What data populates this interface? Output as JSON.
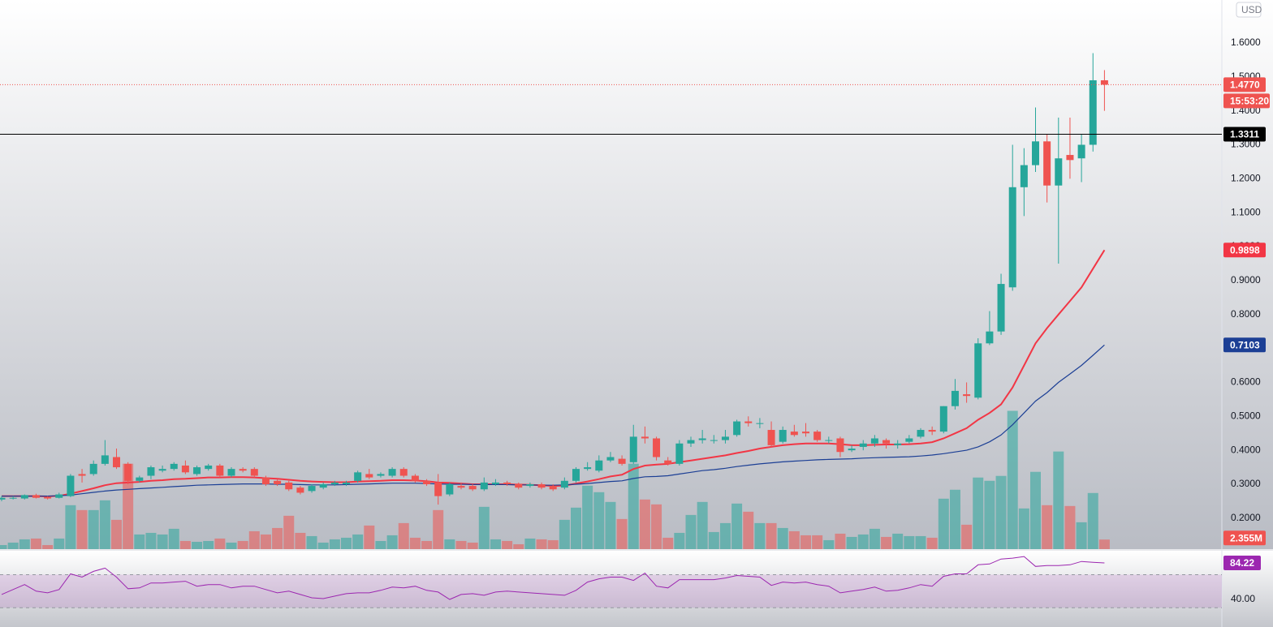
{
  "chart_data": {
    "type": "candlestick",
    "currency": "USD",
    "up_color": "#26a69a",
    "down_color": "#ef5350",
    "ylim": [
      0.1088,
      1.7265
    ],
    "yticks": [
      {
        "value": 0.2,
        "label": "0.2000"
      },
      {
        "value": 0.3,
        "label": "0.3000"
      },
      {
        "value": 0.4,
        "label": "0.4000"
      },
      {
        "value": 0.5,
        "label": "0.5000"
      },
      {
        "value": 0.6,
        "label": "0.6000"
      },
      {
        "value": 0.7,
        "label": "0.7000"
      },
      {
        "value": 0.8,
        "label": "0.8000"
      },
      {
        "value": 0.9,
        "label": "0.9000"
      },
      {
        "value": 1.0,
        "label": "1.0000"
      },
      {
        "value": 1.1,
        "label": "1.1000"
      },
      {
        "value": 1.2,
        "label": "1.2000"
      },
      {
        "value": 1.3,
        "label": "1.3000"
      },
      {
        "value": 1.4,
        "label": "1.4000"
      },
      {
        "value": 1.5,
        "label": "1.5000"
      },
      {
        "value": 1.6,
        "label": "1.6000"
      }
    ],
    "candles": [
      [
        0.255,
        0.265,
        0.25,
        0.26
      ],
      [
        0.26,
        0.265,
        0.255,
        0.26
      ],
      [
        0.258,
        0.27,
        0.255,
        0.268
      ],
      [
        0.268,
        0.272,
        0.258,
        0.26
      ],
      [
        0.262,
        0.265,
        0.255,
        0.258
      ],
      [
        0.26,
        0.275,
        0.258,
        0.27
      ],
      [
        0.265,
        0.33,
        0.262,
        0.325
      ],
      [
        0.33,
        0.345,
        0.305,
        0.325
      ],
      [
        0.33,
        0.37,
        0.325,
        0.36
      ],
      [
        0.36,
        0.43,
        0.355,
        0.385
      ],
      [
        0.38,
        0.405,
        0.345,
        0.35
      ],
      [
        0.36,
        0.365,
        0.3,
        0.31
      ],
      [
        0.31,
        0.325,
        0.305,
        0.32
      ],
      [
        0.325,
        0.355,
        0.315,
        0.35
      ],
      [
        0.34,
        0.355,
        0.335,
        0.345
      ],
      [
        0.345,
        0.365,
        0.34,
        0.36
      ],
      [
        0.355,
        0.37,
        0.33,
        0.335
      ],
      [
        0.33,
        0.355,
        0.325,
        0.35
      ],
      [
        0.345,
        0.36,
        0.34,
        0.355
      ],
      [
        0.355,
        0.36,
        0.32,
        0.325
      ],
      [
        0.325,
        0.35,
        0.32,
        0.345
      ],
      [
        0.345,
        0.35,
        0.335,
        0.34
      ],
      [
        0.345,
        0.35,
        0.32,
        0.325
      ],
      [
        0.32,
        0.325,
        0.295,
        0.3
      ],
      [
        0.31,
        0.315,
        0.295,
        0.3
      ],
      [
        0.305,
        0.31,
        0.28,
        0.285
      ],
      [
        0.29,
        0.295,
        0.27,
        0.275
      ],
      [
        0.28,
        0.3,
        0.275,
        0.295
      ],
      [
        0.29,
        0.305,
        0.285,
        0.3
      ],
      [
        0.3,
        0.31,
        0.295,
        0.305
      ],
      [
        0.3,
        0.31,
        0.295,
        0.305
      ],
      [
        0.31,
        0.34,
        0.305,
        0.335
      ],
      [
        0.33,
        0.345,
        0.315,
        0.32
      ],
      [
        0.325,
        0.335,
        0.32,
        0.33
      ],
      [
        0.325,
        0.35,
        0.32,
        0.345
      ],
      [
        0.345,
        0.35,
        0.32,
        0.325
      ],
      [
        0.325,
        0.33,
        0.305,
        0.31
      ],
      [
        0.31,
        0.315,
        0.295,
        0.3
      ],
      [
        0.305,
        0.33,
        0.24,
        0.265
      ],
      [
        0.27,
        0.305,
        0.265,
        0.3
      ],
      [
        0.295,
        0.305,
        0.285,
        0.29
      ],
      [
        0.295,
        0.3,
        0.28,
        0.285
      ],
      [
        0.285,
        0.32,
        0.28,
        0.305
      ],
      [
        0.3,
        0.315,
        0.295,
        0.305
      ],
      [
        0.305,
        0.31,
        0.295,
        0.3
      ],
      [
        0.3,
        0.305,
        0.285,
        0.29
      ],
      [
        0.295,
        0.305,
        0.29,
        0.3
      ],
      [
        0.3,
        0.305,
        0.285,
        0.29
      ],
      [
        0.295,
        0.3,
        0.28,
        0.285
      ],
      [
        0.29,
        0.32,
        0.285,
        0.31
      ],
      [
        0.31,
        0.35,
        0.305,
        0.345
      ],
      [
        0.345,
        0.365,
        0.34,
        0.35
      ],
      [
        0.34,
        0.385,
        0.335,
        0.37
      ],
      [
        0.37,
        0.395,
        0.365,
        0.38
      ],
      [
        0.375,
        0.385,
        0.355,
        0.36
      ],
      [
        0.365,
        0.475,
        0.36,
        0.44
      ],
      [
        0.44,
        0.47,
        0.42,
        0.435
      ],
      [
        0.435,
        0.44,
        0.37,
        0.38
      ],
      [
        0.37,
        0.38,
        0.355,
        0.36
      ],
      [
        0.36,
        0.43,
        0.355,
        0.42
      ],
      [
        0.42,
        0.44,
        0.41,
        0.43
      ],
      [
        0.43,
        0.46,
        0.42,
        0.435
      ],
      [
        0.43,
        0.445,
        0.42,
        0.43
      ],
      [
        0.43,
        0.46,
        0.42,
        0.44
      ],
      [
        0.445,
        0.49,
        0.44,
        0.485
      ],
      [
        0.485,
        0.5,
        0.47,
        0.48
      ],
      [
        0.48,
        0.495,
        0.465,
        0.48
      ],
      [
        0.46,
        0.485,
        0.41,
        0.415
      ],
      [
        0.425,
        0.47,
        0.42,
        0.46
      ],
      [
        0.455,
        0.475,
        0.44,
        0.445
      ],
      [
        0.455,
        0.48,
        0.44,
        0.45
      ],
      [
        0.455,
        0.46,
        0.425,
        0.43
      ],
      [
        0.43,
        0.44,
        0.42,
        0.43
      ],
      [
        0.435,
        0.44,
        0.38,
        0.395
      ],
      [
        0.4,
        0.415,
        0.395,
        0.405
      ],
      [
        0.41,
        0.43,
        0.4,
        0.42
      ],
      [
        0.42,
        0.445,
        0.41,
        0.435
      ],
      [
        0.43,
        0.435,
        0.405,
        0.42
      ],
      [
        0.415,
        0.43,
        0.405,
        0.42
      ],
      [
        0.425,
        0.445,
        0.42,
        0.435
      ],
      [
        0.44,
        0.465,
        0.435,
        0.46
      ],
      [
        0.46,
        0.47,
        0.445,
        0.455
      ],
      [
        0.455,
        0.53,
        0.45,
        0.53
      ],
      [
        0.53,
        0.61,
        0.52,
        0.575
      ],
      [
        0.565,
        0.6,
        0.54,
        0.56
      ],
      [
        0.555,
        0.73,
        0.55,
        0.715
      ],
      [
        0.715,
        0.81,
        0.71,
        0.75
      ],
      [
        0.75,
        0.92,
        0.74,
        0.89
      ],
      [
        0.88,
        1.3,
        0.87,
        1.175
      ],
      [
        1.175,
        1.29,
        1.09,
        1.24
      ],
      [
        1.24,
        1.41,
        1.22,
        1.31
      ],
      [
        1.31,
        1.33,
        1.13,
        1.18
      ],
      [
        1.18,
        1.38,
        0.95,
        1.26
      ],
      [
        1.27,
        1.38,
        1.2,
        1.255
      ],
      [
        1.26,
        1.33,
        1.19,
        1.3
      ],
      [
        1.3,
        1.57,
        1.28,
        1.49
      ],
      [
        1.49,
        1.52,
        1.4,
        1.477
      ]
    ],
    "volume": {
      "ylim": [
        0,
        135
      ],
      "values": [
        1,
        1.6,
        2.4,
        2.6,
        1,
        2.6,
        10.8,
        9.6,
        9.6,
        12,
        7.2,
        21,
        3.6,
        4,
        3.6,
        5,
        2,
        1.8,
        2,
        2.6,
        1.6,
        2,
        4.4,
        3.6,
        5.2,
        8.2,
        4,
        3.2,
        1.6,
        2.4,
        2.8,
        3.6,
        5.8,
        2,
        3.4,
        6.4,
        2.8,
        2,
        9.6,
        2.4,
        2,
        1.6,
        10.4,
        2.4,
        2,
        1.2,
        2.6,
        2.4,
        2.2,
        7.2,
        10.2,
        15.6,
        14,
        11.6,
        7.4,
        21,
        12.2,
        11,
        2.8,
        4,
        8.4,
        11.6,
        4.2,
        6.4,
        11.2,
        9.2,
        6.4,
        6.4,
        5.2,
        4.4,
        3.4,
        3.4,
        2.2,
        3.8,
        3,
        3.6,
        5,
        3,
        3.8,
        3.2,
        3.2,
        2.8,
        12.4,
        14.6,
        6,
        17.6,
        16.8,
        18,
        34,
        10,
        19,
        10.8,
        24,
        10.6,
        6.6,
        13.8,
        2.355
      ],
      "value_labels": [
        null,
        null,
        null,
        null,
        null,
        null,
        null,
        null,
        null,
        null,
        null,
        null,
        null,
        null,
        null,
        null,
        null,
        null,
        null,
        null,
        null,
        null,
        null,
        null,
        null,
        null,
        null,
        null,
        null,
        null,
        null,
        null,
        null,
        null,
        null,
        null,
        null,
        null,
        null,
        null,
        null,
        null,
        null,
        null,
        null,
        null,
        null,
        null,
        null,
        null,
        null,
        null,
        null,
        null,
        null,
        null,
        null,
        null,
        null,
        null,
        null,
        null,
        null,
        null,
        null,
        null,
        null,
        null,
        null,
        null,
        null,
        null,
        null,
        null,
        null,
        null,
        null,
        null,
        null,
        null,
        null,
        null,
        null,
        null,
        null,
        null,
        null,
        null,
        null,
        null,
        null,
        null,
        null,
        null,
        null,
        null,
        "2.355M"
      ]
    },
    "lines": [
      {
        "color": "#f23645",
        "values": [
          0.265,
          0.265,
          0.265,
          0.265,
          0.264,
          0.266,
          0.272,
          0.28,
          0.288,
          0.297,
          0.303,
          0.305,
          0.307,
          0.31,
          0.312,
          0.315,
          0.316,
          0.318,
          0.32,
          0.32,
          0.321,
          0.321,
          0.32,
          0.318,
          0.316,
          0.313,
          0.31,
          0.308,
          0.307,
          0.306,
          0.306,
          0.308,
          0.309,
          0.31,
          0.312,
          0.312,
          0.311,
          0.309,
          0.305,
          0.304,
          0.302,
          0.3,
          0.3,
          0.3,
          0.3,
          0.299,
          0.298,
          0.297,
          0.295,
          0.296,
          0.302,
          0.308,
          0.315,
          0.323,
          0.328,
          0.345,
          0.355,
          0.358,
          0.36,
          0.365,
          0.37,
          0.375,
          0.38,
          0.385,
          0.392,
          0.398,
          0.405,
          0.41,
          0.415,
          0.418,
          0.42,
          0.42,
          0.42,
          0.418,
          0.415,
          0.415,
          0.416,
          0.417,
          0.417,
          0.418,
          0.42,
          0.424,
          0.435,
          0.45,
          0.465,
          0.49,
          0.51,
          0.535,
          0.585,
          0.65,
          0.715,
          0.76,
          0.8,
          0.84,
          0.88,
          0.935,
          0.9898
        ]
      },
      {
        "color": "#1c3f95",
        "values": [
          0.265,
          0.265,
          0.265,
          0.265,
          0.265,
          0.266,
          0.268,
          0.272,
          0.276,
          0.28,
          0.283,
          0.285,
          0.287,
          0.289,
          0.291,
          0.293,
          0.295,
          0.297,
          0.298,
          0.299,
          0.3,
          0.301,
          0.301,
          0.301,
          0.3,
          0.3,
          0.299,
          0.298,
          0.298,
          0.298,
          0.299,
          0.3,
          0.301,
          0.302,
          0.303,
          0.303,
          0.303,
          0.302,
          0.301,
          0.3,
          0.3,
          0.299,
          0.299,
          0.299,
          0.299,
          0.298,
          0.298,
          0.297,
          0.297,
          0.298,
          0.3,
          0.302,
          0.305,
          0.308,
          0.31,
          0.317,
          0.322,
          0.323,
          0.325,
          0.33,
          0.335,
          0.34,
          0.343,
          0.347,
          0.352,
          0.356,
          0.36,
          0.363,
          0.366,
          0.368,
          0.37,
          0.372,
          0.373,
          0.374,
          0.375,
          0.377,
          0.378,
          0.379,
          0.38,
          0.381,
          0.383,
          0.386,
          0.39,
          0.395,
          0.4,
          0.41,
          0.425,
          0.445,
          0.475,
          0.51,
          0.545,
          0.57,
          0.6,
          0.625,
          0.65,
          0.68,
          0.7103
        ]
      }
    ],
    "horizontal_line": {
      "value": 1.3311,
      "color": "#000000"
    },
    "price_line": {
      "value": 1.477,
      "label": "1.4770",
      "countdown": "15:53:20"
    },
    "rsi": {
      "color": "#9c27b0",
      "ylim": [
        6.6,
        98
      ],
      "bands": [
        30,
        70
      ],
      "yticks": [
        {
          "value": 40,
          "label": "40.00"
        }
      ],
      "values": [
        46,
        52,
        58,
        50,
        48,
        52,
        71,
        67,
        74,
        78,
        67,
        53,
        54,
        60,
        60,
        61,
        62,
        56,
        58,
        58,
        54,
        56,
        56,
        52,
        48,
        50,
        46,
        42,
        41,
        44,
        47,
        48,
        48,
        51,
        55,
        54,
        56,
        51,
        49,
        40,
        46,
        47,
        45,
        49,
        50,
        49,
        48,
        47,
        46,
        45,
        51,
        61,
        65,
        67,
        67,
        63,
        72,
        56,
        54,
        64,
        64,
        64,
        64,
        66,
        69,
        68,
        67,
        57,
        61,
        60,
        61,
        58,
        56,
        48,
        50,
        52,
        55,
        50,
        51,
        54,
        58,
        56,
        68,
        71,
        71,
        82,
        83,
        89,
        90,
        92,
        80,
        81,
        81,
        82,
        86,
        85,
        84.22
      ]
    }
  }
}
